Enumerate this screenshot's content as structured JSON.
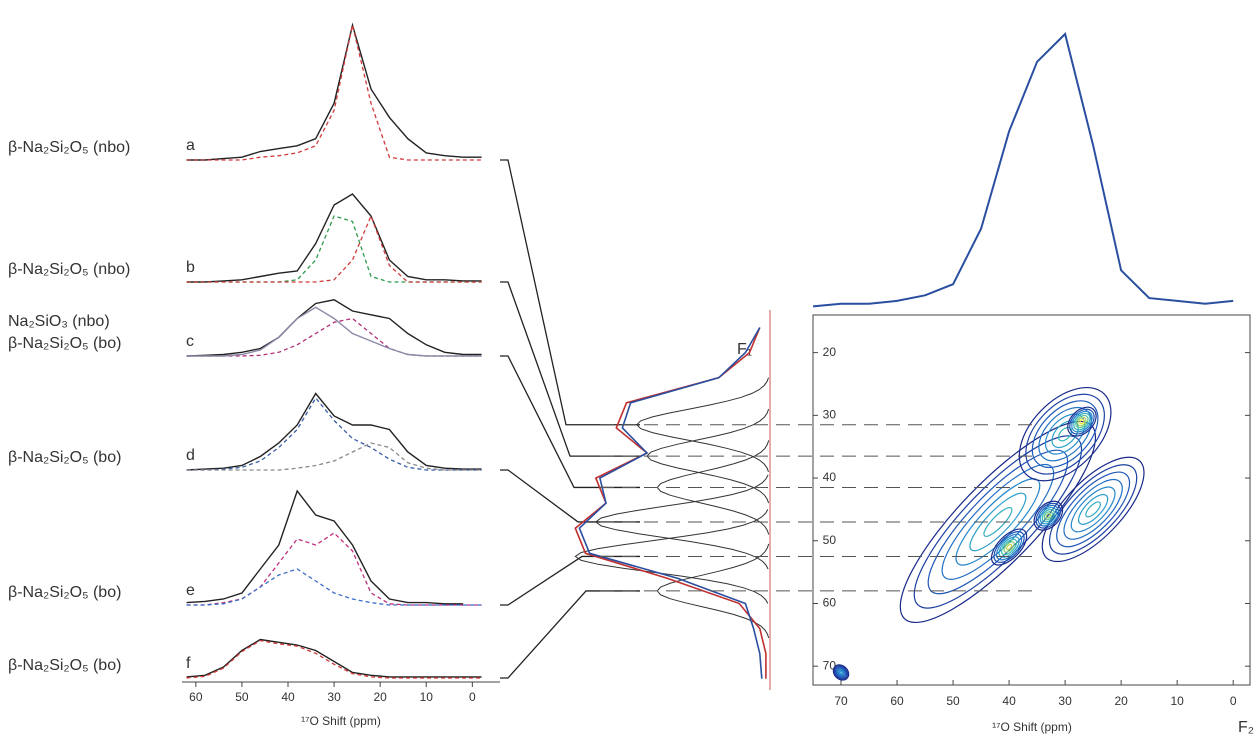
{
  "chart_data": [
    {
      "type": "line",
      "xlabel": "¹⁷O Shift (ppm)",
      "xlim": [
        63,
        -6
      ],
      "xticks": [
        60,
        50,
        40,
        30,
        20,
        10,
        0
      ],
      "x": [
        62,
        58,
        54,
        50,
        46,
        42,
        38,
        34,
        30,
        26,
        22,
        18,
        14,
        10,
        6,
        2,
        -2
      ],
      "panels": [
        {
          "letter": "a",
          "labels": [
            {
              "text": "β-Na₂Si₂O₅ (nbo)",
              "color": "#c8283c"
            }
          ],
          "series": [
            {
              "color": "#222222",
              "dashed": false,
              "values": [
                0,
                0,
                0.01,
                0.02,
                0.06,
                0.08,
                0.1,
                0.15,
                0.4,
                0.95,
                0.5,
                0.3,
                0.15,
                0.05,
                0.03,
                0.02,
                0.02
              ]
            },
            {
              "color": "#d03a3a",
              "dashed": true,
              "values": [
                0,
                0,
                0,
                0,
                0.02,
                0.03,
                0.05,
                0.1,
                0.35,
                0.95,
                0.4,
                0.02,
                0,
                0,
                0,
                0,
                0
              ]
            }
          ]
        },
        {
          "letter": "b",
          "labels": [
            {
              "text": "β-Na₂Si₂O₅ (nbo)",
              "color": "#2e8b3e"
            }
          ],
          "series": [
            {
              "color": "#222222",
              "dashed": false,
              "values": [
                0,
                0,
                0.01,
                0.02,
                0.05,
                0.08,
                0.1,
                0.35,
                0.7,
                0.8,
                0.6,
                0.2,
                0.05,
                0.02,
                0.02,
                0.01,
                0.01
              ]
            },
            {
              "color": "#2e9b4e",
              "dashed": true,
              "values": [
                0,
                0,
                0,
                0,
                0,
                0,
                0.02,
                0.2,
                0.6,
                0.55,
                0.05,
                0,
                0,
                0,
                0,
                0,
                0
              ]
            },
            {
              "color": "#d03a3a",
              "dashed": true,
              "values": [
                0,
                0,
                0,
                0,
                0,
                0,
                0,
                0,
                0.02,
                0.2,
                0.6,
                0.15,
                0,
                0,
                0,
                0,
                0
              ]
            }
          ]
        },
        {
          "letter": "c",
          "labels": [
            {
              "text": "Na₂SiO₃ (nbo)",
              "color": "#b0307a"
            },
            {
              "text": "β-Na₂Si₂O₅ (bo)",
              "color": "#3a5da8"
            }
          ],
          "series": [
            {
              "color": "#222222",
              "dashed": false,
              "values": [
                0,
                0.01,
                0.02,
                0.05,
                0.1,
                0.25,
                0.5,
                0.7,
                0.75,
                0.6,
                0.55,
                0.5,
                0.3,
                0.15,
                0.05,
                0.02,
                0.02
              ]
            },
            {
              "color": "#b0307a",
              "dashed": true,
              "values": [
                0,
                0,
                0,
                0,
                0.01,
                0.05,
                0.15,
                0.3,
                0.45,
                0.5,
                0.3,
                0.1,
                0.02,
                0,
                0,
                0,
                0
              ]
            },
            {
              "color": "#8a8aa8",
              "dashed": false,
              "values": [
                0,
                0,
                0,
                0.02,
                0.08,
                0.25,
                0.5,
                0.65,
                0.5,
                0.3,
                0.2,
                0.1,
                0.02,
                0,
                0,
                0,
                0
              ]
            }
          ]
        },
        {
          "letter": "d",
          "labels": [
            {
              "text": "β-Na₂Si₂O₅ (bo)",
              "color": "#3a5da8"
            }
          ],
          "series": [
            {
              "color": "#222222",
              "dashed": false,
              "values": [
                0,
                0.01,
                0.02,
                0.05,
                0.15,
                0.3,
                0.5,
                0.85,
                0.6,
                0.5,
                0.5,
                0.45,
                0.2,
                0.05,
                0.02,
                0.01,
                0.01
              ]
            },
            {
              "color": "#3a5da8",
              "dashed": true,
              "values": [
                0,
                0,
                0.01,
                0.03,
                0.1,
                0.25,
                0.45,
                0.8,
                0.55,
                0.35,
                0.25,
                0.12,
                0.03,
                0,
                0,
                0,
                0
              ]
            },
            {
              "color": "#8a8a8a",
              "dashed": true,
              "values": [
                0,
                0,
                0,
                0,
                0,
                0,
                0.02,
                0.05,
                0.1,
                0.2,
                0.3,
                0.25,
                0.08,
                0.02,
                0,
                0,
                0
              ]
            }
          ]
        },
        {
          "letter": "e",
          "labels": [
            {
              "text": "β-Na₂Si₂O₅ (bo)",
              "color": "#c2307e"
            }
          ],
          "series": [
            {
              "color": "#222222",
              "dashed": false,
              "values": [
                0.02,
                0.03,
                0.05,
                0.1,
                0.3,
                0.5,
                0.95,
                0.75,
                0.7,
                0.5,
                0.2,
                0.05,
                0.02,
                0.02,
                0.01,
                0.01,
                null
              ]
            },
            {
              "color": "#c2307e",
              "dashed": true,
              "values": [
                0,
                0,
                0.02,
                0.05,
                0.15,
                0.35,
                0.55,
                0.5,
                0.6,
                0.45,
                0.1,
                0.01,
                0,
                0,
                0,
                0,
                0
              ]
            },
            {
              "color": "#3a6dc8",
              "dashed": true,
              "values": [
                0,
                0,
                0.01,
                0.05,
                0.15,
                0.25,
                0.3,
                0.2,
                0.1,
                0.05,
                0.02,
                0,
                0,
                0,
                0,
                0,
                0
              ]
            }
          ]
        },
        {
          "letter": "f",
          "labels": [
            {
              "text": "β-Na₂Si₂O₅ (bo)",
              "color": "#b8304f"
            }
          ],
          "series": [
            {
              "color": "#222222",
              "dashed": false,
              "values": [
                0.02,
                0.05,
                0.2,
                0.5,
                0.7,
                0.65,
                0.6,
                0.5,
                0.3,
                0.1,
                0.05,
                0.02,
                0.02,
                0.02,
                0.02,
                0.02,
                0.02
              ]
            },
            {
              "color": "#d03a3a",
              "dashed": true,
              "values": [
                0,
                0.03,
                0.18,
                0.48,
                0.68,
                0.62,
                0.58,
                0.45,
                0.25,
                0.08,
                0.02,
                0,
                0,
                0,
                0,
                0,
                0
              ]
            }
          ]
        }
      ]
    },
    {
      "type": "line",
      "xlim": [
        75,
        -3
      ],
      "color": "#2a4fa0",
      "x": [
        75,
        70,
        65,
        60,
        55,
        50,
        45,
        40,
        35,
        30,
        25,
        20,
        15,
        10,
        5,
        0
      ],
      "values": [
        0.02,
        0.03,
        0.03,
        0.04,
        0.06,
        0.1,
        0.3,
        0.65,
        0.9,
        1.0,
        0.6,
        0.15,
        0.05,
        0.04,
        0.03,
        0.04
      ]
    },
    {
      "type": "projection",
      "label": "F₁",
      "ylim": [
        14,
        73
      ],
      "y": [
        16,
        20,
        24,
        28,
        32,
        36,
        40,
        44,
        48,
        52,
        56,
        60,
        64,
        68,
        72
      ],
      "series": [
        {
          "color": "#c03030",
          "values": [
            0.05,
            0.1,
            0.25,
            0.7,
            0.75,
            0.6,
            0.85,
            0.8,
            0.95,
            0.9,
            0.5,
            0.15,
            0.05,
            0.02,
            0.02
          ]
        },
        {
          "color": "#2a4fa0",
          "values": [
            0.05,
            0.12,
            0.25,
            0.68,
            0.72,
            0.6,
            0.83,
            0.8,
            0.93,
            0.88,
            0.45,
            0.12,
            0.08,
            0.05,
            0.04
          ]
        }
      ],
      "components": [
        {
          "center": 31.5,
          "height": 0.65,
          "width": 2.5
        },
        {
          "center": 36.5,
          "height": 0.6,
          "width": 2.5
        },
        {
          "center": 41.5,
          "height": 0.55,
          "width": 2.5
        },
        {
          "center": 47,
          "height": 0.85,
          "width": 2.5
        },
        {
          "center": 52.5,
          "height": 0.95,
          "width": 2.5
        },
        {
          "center": 58,
          "height": 0.55,
          "width": 2.5
        }
      ]
    },
    {
      "type": "contour",
      "xlabel": "¹⁷O Shift (ppm)",
      "xname": "F₂",
      "xlim": [
        75,
        -3
      ],
      "ylim": [
        14,
        73
      ],
      "xticks": [
        70,
        60,
        50,
        40,
        30,
        20,
        10,
        0
      ],
      "yticks": [
        20,
        30,
        40,
        50,
        60,
        70
      ],
      "guides": [
        31.5,
        36.5,
        41.5,
        47,
        52.5,
        58
      ],
      "peaks": [
        {
          "x": 42,
          "y": 47,
          "rx": 24,
          "ry": 7,
          "level": 0.5
        },
        {
          "x": 30,
          "y": 33,
          "rx": 10,
          "ry": 6,
          "level": 0.55
        },
        {
          "x": 25,
          "y": 45,
          "rx": 12,
          "ry": 5,
          "level": 0.5
        },
        {
          "x": 27,
          "y": 31,
          "rx": 3,
          "ry": 2,
          "level": 1
        },
        {
          "x": 33,
          "y": 46,
          "rx": 3,
          "ry": 2,
          "level": 0.8
        },
        {
          "x": 40,
          "y": 51,
          "rx": 4,
          "ry": 2,
          "level": 0.9
        },
        {
          "x": 70,
          "y": 71,
          "rx": 1.2,
          "ry": 1.5,
          "level": 0.4
        }
      ]
    }
  ]
}
